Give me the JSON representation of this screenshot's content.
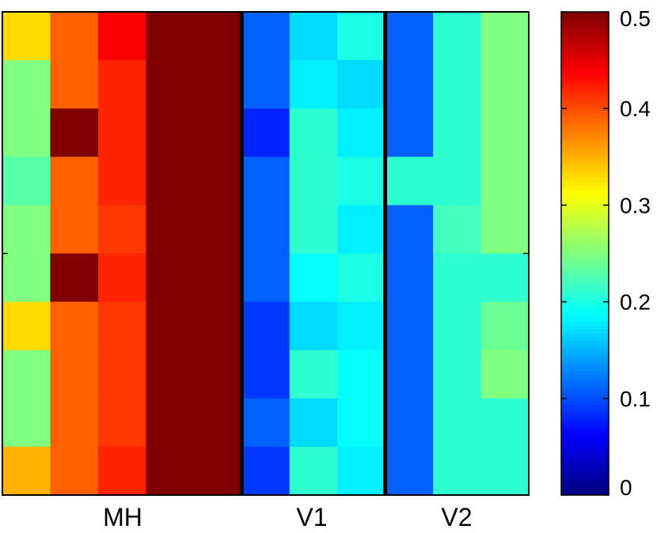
{
  "chart_data": {
    "type": "heatmap",
    "title": "",
    "xlabel": "",
    "ylabel": "",
    "group_labels": [
      "MH",
      "V1",
      "V2"
    ],
    "group_column_counts": [
      5,
      3,
      3
    ],
    "colorbar": {
      "colormap": "jet",
      "clim": [
        0,
        0.5
      ],
      "ticks": [
        0,
        0.1,
        0.2,
        0.3,
        0.4,
        0.5
      ],
      "tick_labels": [
        "0",
        "0.1",
        "0.2",
        "0.3",
        "0.4",
        "0.5"
      ]
    },
    "rows": 10,
    "cols": 11,
    "values": [
      [
        0.33,
        0.39,
        0.44,
        0.5,
        0.5,
        0.11,
        0.17,
        0.2,
        0.11,
        0.21,
        0.25
      ],
      [
        0.25,
        0.39,
        0.42,
        0.5,
        0.5,
        0.11,
        0.18,
        0.17,
        0.11,
        0.21,
        0.25
      ],
      [
        0.25,
        0.5,
        0.42,
        0.5,
        0.5,
        0.08,
        0.21,
        0.18,
        0.11,
        0.21,
        0.25
      ],
      [
        0.23,
        0.39,
        0.42,
        0.5,
        0.5,
        0.11,
        0.21,
        0.2,
        0.21,
        0.21,
        0.25
      ],
      [
        0.25,
        0.39,
        0.41,
        0.5,
        0.5,
        0.11,
        0.21,
        0.18,
        0.11,
        0.22,
        0.25
      ],
      [
        0.25,
        0.5,
        0.42,
        0.5,
        0.5,
        0.11,
        0.19,
        0.2,
        0.11,
        0.21,
        0.21
      ],
      [
        0.33,
        0.39,
        0.41,
        0.5,
        0.5,
        0.09,
        0.17,
        0.18,
        0.11,
        0.21,
        0.24
      ],
      [
        0.25,
        0.39,
        0.41,
        0.5,
        0.5,
        0.09,
        0.21,
        0.19,
        0.11,
        0.21,
        0.25
      ],
      [
        0.25,
        0.39,
        0.41,
        0.5,
        0.5,
        0.11,
        0.17,
        0.19,
        0.11,
        0.21,
        0.21
      ],
      [
        0.35,
        0.39,
        0.42,
        0.5,
        0.5,
        0.09,
        0.21,
        0.18,
        0.11,
        0.21,
        0.21
      ]
    ],
    "grid": false,
    "legend": "colorbar-right"
  }
}
